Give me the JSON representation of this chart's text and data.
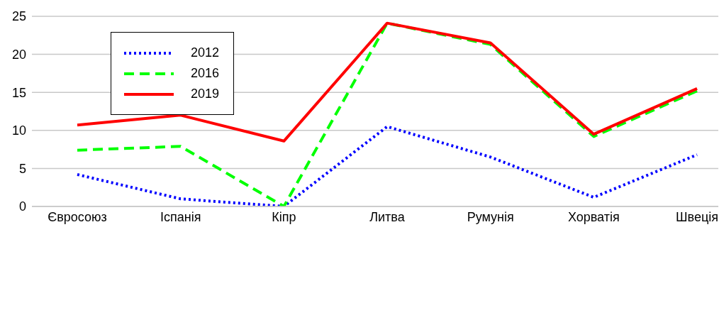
{
  "chart_data": {
    "type": "line",
    "categories": [
      "Євросоюз",
      "Іспанія",
      "Кіпр",
      "Литва",
      "Румунія",
      "Хорватія",
      "Швеція"
    ],
    "series": [
      {
        "name": "2012",
        "color": "#0000ff",
        "line_style": "dotted",
        "values": [
          4.2,
          1.0,
          0,
          10.5,
          6.5,
          1.2,
          6.8
        ]
      },
      {
        "name": "2016",
        "color": "#00ff00",
        "line_style": "dashed",
        "values": [
          7.4,
          7.9,
          0,
          24.1,
          21.3,
          9.2,
          15.2
        ]
      },
      {
        "name": "2019",
        "color": "#ff0000",
        "line_style": "solid",
        "values": [
          10.7,
          12.0,
          8.6,
          24.1,
          21.5,
          9.5,
          15.5
        ]
      }
    ],
    "ylim": [
      0,
      25
    ],
    "yticks": [
      0,
      5,
      10,
      15,
      20,
      25
    ],
    "grid": "y",
    "legend": "top left",
    "marker": "none"
  }
}
